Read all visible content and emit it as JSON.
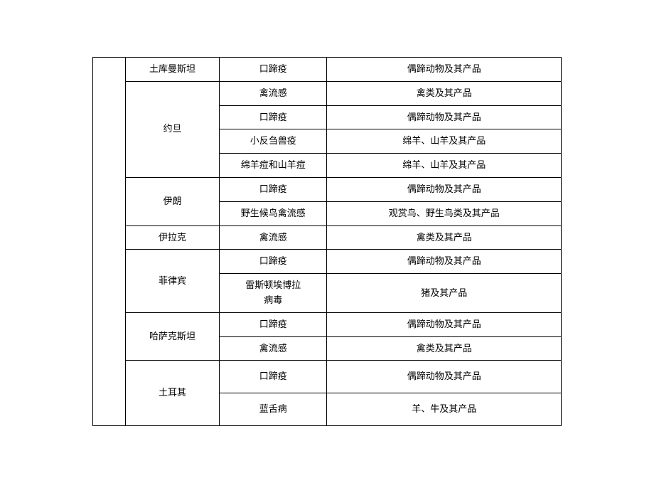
{
  "table": {
    "type": "table",
    "background_color": "#ffffff",
    "border_color": "#000000",
    "font_size": 13,
    "text_color": "#000000",
    "columns": [
      {
        "key": "region",
        "width_pct": 7
      },
      {
        "key": "country",
        "width_pct": 20
      },
      {
        "key": "disease",
        "width_pct": 23
      },
      {
        "key": "product",
        "width_pct": 50
      }
    ],
    "rows": [
      {
        "country": "土库曼斯坦",
        "disease": "口蹄疫",
        "product": "偶蹄动物及其产品"
      },
      {
        "country": "约旦",
        "disease": "禽流感",
        "product": "禽类及其产品"
      },
      {
        "country": "约旦",
        "disease": "口蹄疫",
        "product": "偶蹄动物及其产品"
      },
      {
        "country": "约旦",
        "disease": "小反刍兽疫",
        "product": "绵羊、山羊及其产品"
      },
      {
        "country": "约旦",
        "disease": "绵羊痘和山羊痘",
        "product": "绵羊、山羊及其产品"
      },
      {
        "country": "伊朗",
        "disease": "口蹄疫",
        "product": "偶蹄动物及其产品"
      },
      {
        "country": "伊朗",
        "disease": "野生候鸟禽流感",
        "product": "观赏鸟、野生鸟类及其产品"
      },
      {
        "country": "伊拉克",
        "disease": "禽流感",
        "product": "禽类及其产品"
      },
      {
        "country": "菲律宾",
        "disease": "口蹄疫",
        "product": "偶蹄动物及其产品"
      },
      {
        "country": "菲律宾",
        "disease_line1": "雷斯顿埃博拉",
        "disease_line2": "病毒",
        "product": "猪及其产品"
      },
      {
        "country": "哈萨克斯坦",
        "disease": "口蹄疫",
        "product": "偶蹄动物及其产品"
      },
      {
        "country": "哈萨克斯坦",
        "disease": "禽流感",
        "product": "禽类及其产品"
      },
      {
        "country": "土耳其",
        "disease": "口蹄疫",
        "product": "偶蹄动物及其产品"
      },
      {
        "country": "土耳其",
        "disease": "蓝舌病",
        "product": "羊、牛及其产品"
      }
    ]
  }
}
